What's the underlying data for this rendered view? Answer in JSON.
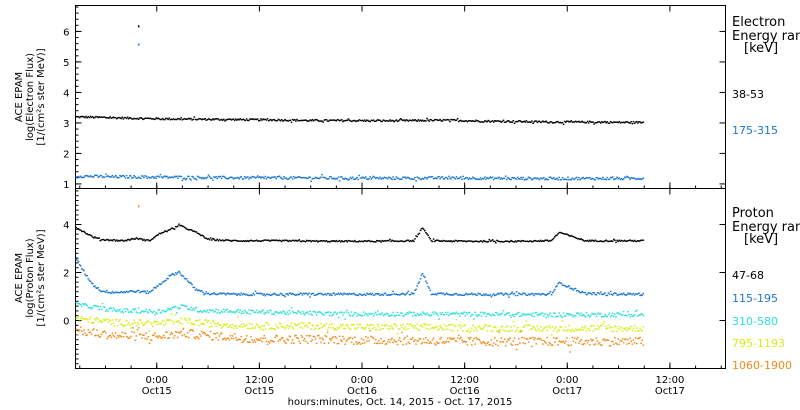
{
  "x_axis": {
    "title": "hours:minutes, Oct. 14, 2015 - Oct. 17, 2015",
    "ticks": [
      {
        "hours": 0,
        "time": "0:00",
        "date": "Oct15"
      },
      {
        "hours": 12,
        "time": "12:00",
        "date": "Oct15"
      },
      {
        "hours": 24,
        "time": "0:00",
        "date": "Oct16"
      },
      {
        "hours": 36,
        "time": "12:00",
        "date": "Oct16"
      },
      {
        "hours": 48,
        "time": "0:00",
        "date": "Oct17"
      },
      {
        "hours": 60,
        "time": "12:00",
        "date": "Oct17"
      }
    ]
  },
  "colors": {
    "black": "#000000",
    "blue": "#1a78d2",
    "cyan": "#2ee0d8",
    "yellow": "#d4ee12",
    "orange": "#f08a18"
  },
  "chart_data": [
    {
      "type": "scatter",
      "title": "",
      "ylabel": [
        "ACE EPAM",
        "log(Electron Flux)",
        "[1/(cm²s ster MeV)]"
      ],
      "ylim": [
        0.85,
        6.85
      ],
      "yticks": [
        1,
        2,
        3,
        4,
        5,
        6
      ],
      "xlim_hours": [
        -9.5,
        66.5
      ],
      "legend": {
        "title": [
          "Electron",
          "Energy ran",
          "[keV]"
        ],
        "placement": "right"
      },
      "series": [
        {
          "name": "38-53",
          "color": "black",
          "x_hours": [
            -9.5,
            -6,
            -2,
            2,
            6,
            10,
            14,
            18,
            22,
            26,
            30,
            34,
            38,
            42,
            46,
            50,
            54,
            56.8
          ],
          "values": [
            3.22,
            3.2,
            3.17,
            3.15,
            3.14,
            3.13,
            3.12,
            3.1,
            3.1,
            3.09,
            3.1,
            3.11,
            3.08,
            3.07,
            3.05,
            3.05,
            3.04,
            3.04
          ],
          "spikes": [
            {
              "x_hours": -2.2,
              "value": 6.2
            }
          ]
        },
        {
          "name": "175-315",
          "color": "blue",
          "x_hours": [
            -9.5,
            -6,
            -2,
            2,
            6,
            10,
            14,
            18,
            22,
            26,
            30,
            34,
            38,
            42,
            46,
            50,
            54,
            56.8
          ],
          "values": [
            1.28,
            1.26,
            1.25,
            1.24,
            1.23,
            1.22,
            1.22,
            1.22,
            1.21,
            1.21,
            1.21,
            1.22,
            1.21,
            1.2,
            1.2,
            1.2,
            1.2,
            1.21
          ],
          "spikes": [
            {
              "x_hours": -2.2,
              "value": 5.6
            }
          ]
        }
      ]
    },
    {
      "type": "scatter",
      "title": "",
      "ylabel": [
        "ACE EPAM",
        "log(Proton Flux)",
        "[1/(cm²s ster MeV)]"
      ],
      "ylim": [
        -2.0,
        5.5
      ],
      "yticks": [
        0,
        2,
        4
      ],
      "xlim_hours": [
        -9.5,
        66.5
      ],
      "legend": {
        "title": [
          "Proton",
          "Energy ran",
          "[keV]"
        ],
        "placement": "right"
      },
      "series": [
        {
          "name": "47-68",
          "color": "black",
          "x_hours": [
            -9.5,
            -8.5,
            -7.5,
            -6.5,
            -4,
            -2.5,
            -1,
            0.5,
            1.5,
            2.5,
            3.5,
            4.5,
            6,
            9,
            14,
            20,
            26,
            30,
            31,
            32,
            36,
            42,
            46,
            47,
            50,
            56.8
          ],
          "values": [
            3.9,
            3.7,
            3.5,
            3.4,
            3.35,
            3.45,
            3.35,
            3.7,
            3.8,
            4.0,
            3.85,
            3.7,
            3.4,
            3.35,
            3.35,
            3.33,
            3.33,
            3.35,
            3.9,
            3.35,
            3.33,
            3.33,
            3.35,
            3.7,
            3.35,
            3.35
          ]
        },
        {
          "name": "115-195",
          "color": "blue",
          "x_hours": [
            -9.5,
            -8.5,
            -7.5,
            -6.5,
            -5,
            -2.5,
            -1,
            0.5,
            1.5,
            2.5,
            3.5,
            4.5,
            6,
            9,
            14,
            20,
            26,
            30,
            31,
            32,
            36,
            42,
            46,
            47,
            50,
            56.8
          ],
          "values": [
            2.6,
            2.0,
            1.5,
            1.25,
            1.2,
            1.25,
            1.2,
            1.6,
            1.9,
            2.05,
            1.7,
            1.3,
            1.15,
            1.12,
            1.12,
            1.12,
            1.12,
            1.15,
            2.0,
            1.15,
            1.12,
            1.12,
            1.12,
            1.6,
            1.15,
            1.12
          ]
        },
        {
          "name": "310-580",
          "color": "cyan",
          "x_hours": [
            -9.5,
            -5,
            0,
            2,
            3,
            5,
            10,
            16,
            22,
            28,
            34,
            40,
            46,
            52,
            56.8
          ],
          "values": [
            0.7,
            0.45,
            0.4,
            0.55,
            0.6,
            0.45,
            0.4,
            0.35,
            0.3,
            0.3,
            0.3,
            0.28,
            0.27,
            0.27,
            0.27
          ]
        },
        {
          "name": "795-1193",
          "color": "yellow",
          "x_hours": [
            -9.5,
            -5,
            0,
            3,
            6,
            12,
            18,
            24,
            30,
            36,
            42,
            48,
            56.8
          ],
          "values": [
            0.1,
            -0.05,
            -0.1,
            0.0,
            -0.1,
            -0.2,
            -0.2,
            -0.25,
            -0.25,
            -0.28,
            -0.3,
            -0.3,
            -0.3
          ]
        },
        {
          "name": "1060-1900",
          "color": "orange",
          "x_hours": [
            -9.5,
            -5,
            0,
            3,
            6,
            12,
            18,
            24,
            30,
            36,
            42,
            48,
            56.8
          ],
          "values": [
            -0.4,
            -0.6,
            -0.65,
            -0.5,
            -0.6,
            -0.75,
            -0.75,
            -0.8,
            -0.8,
            -0.85,
            -0.85,
            -0.85,
            -0.85
          ],
          "spikes": [
            {
              "x_hours": -2.2,
              "value": 4.8
            }
          ]
        }
      ]
    }
  ]
}
